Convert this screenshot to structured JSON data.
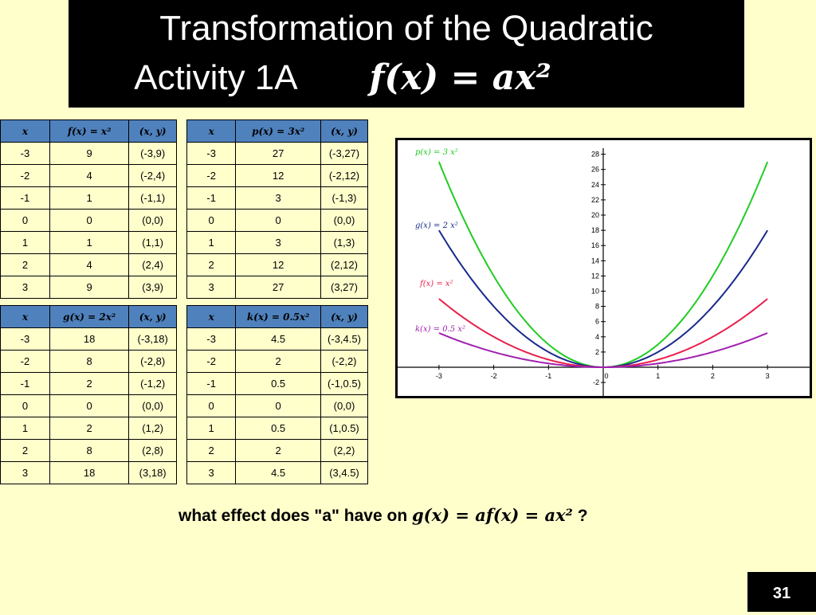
{
  "title": {
    "line1": "Transformation of  the Quadratic",
    "line2_text": "Activity 1A",
    "line2_formula": "f(x) = ax²"
  },
  "tables": [
    {
      "id": "f",
      "headers": [
        "x",
        "f(x) = x²",
        "(x, y)"
      ],
      "rows": [
        [
          "-3",
          "9",
          "(-3,9)"
        ],
        [
          "-2",
          "4",
          "(-2,4)"
        ],
        [
          "-1",
          "1",
          "(-1,1)"
        ],
        [
          "0",
          "0",
          "(0,0)"
        ],
        [
          "1",
          "1",
          "(1,1)"
        ],
        [
          "2",
          "4",
          "(2,4)"
        ],
        [
          "3",
          "9",
          "(3,9)"
        ]
      ]
    },
    {
      "id": "g",
      "headers": [
        "x",
        "g(x) = 2x²",
        "(x, y)"
      ],
      "rows": [
        [
          "-3",
          "18",
          "(-3,18)"
        ],
        [
          "-2",
          "8",
          "(-2,8)"
        ],
        [
          "-1",
          "2",
          "(-1,2)"
        ],
        [
          "0",
          "0",
          "(0,0)"
        ],
        [
          "1",
          "2",
          "(1,2)"
        ],
        [
          "2",
          "8",
          "(2,8)"
        ],
        [
          "3",
          "18",
          "(3,18)"
        ]
      ]
    },
    {
      "id": "p",
      "headers": [
        "x",
        "p(x) = 3x²",
        "(x, y)"
      ],
      "rows": [
        [
          "-3",
          "27",
          "(-3,27)"
        ],
        [
          "-2",
          "12",
          "(-2,12)"
        ],
        [
          "-1",
          "3",
          "(-1,3)"
        ],
        [
          "0",
          "0",
          "(0,0)"
        ],
        [
          "1",
          "3",
          "(1,3)"
        ],
        [
          "2",
          "12",
          "(2,12)"
        ],
        [
          "3",
          "27",
          "(3,27)"
        ]
      ]
    },
    {
      "id": "k",
      "headers": [
        "x",
        "k(x) = 0.5x²",
        "(x, y)"
      ],
      "rows": [
        [
          "-3",
          "4.5",
          "(-3,4.5)"
        ],
        [
          "-2",
          "2",
          "(-2,2)"
        ],
        [
          "-1",
          "0.5",
          "(-1,0.5)"
        ],
        [
          "0",
          "0",
          "(0,0)"
        ],
        [
          "1",
          "0.5",
          "(1,0.5)"
        ],
        [
          "2",
          "2",
          "(2,2)"
        ],
        [
          "3",
          "4.5",
          "(3,4.5)"
        ]
      ]
    }
  ],
  "graph": {
    "x_range": [
      -3,
      3
    ],
    "y_range": [
      -2,
      28
    ],
    "x_ticks": [
      "-3",
      "-2",
      "-1",
      "0",
      "1",
      "2",
      "3"
    ],
    "y_ticks": [
      "-2",
      "2",
      "4",
      "6",
      "8",
      "10",
      "12",
      "14",
      "16",
      "18",
      "20",
      "22",
      "24",
      "26",
      "28"
    ],
    "curves": [
      {
        "id": "p",
        "label": "p(x) = 3 x²",
        "a": 3,
        "color": "#22cc22"
      },
      {
        "id": "g",
        "label": "g(x) = 2 x²",
        "a": 2,
        "color": "#1a2a8c"
      },
      {
        "id": "f",
        "label": "f(x) = x²",
        "a": 1,
        "color": "#e8204a"
      },
      {
        "id": "k",
        "label": "k(x) = 0.5 x²",
        "a": 0.5,
        "color": "#a020b0"
      }
    ]
  },
  "question": {
    "text": "what effect does \"a\" have on ",
    "math": "g(x) = af(x) = ax²",
    "end": " ?"
  },
  "page_number": "31"
}
